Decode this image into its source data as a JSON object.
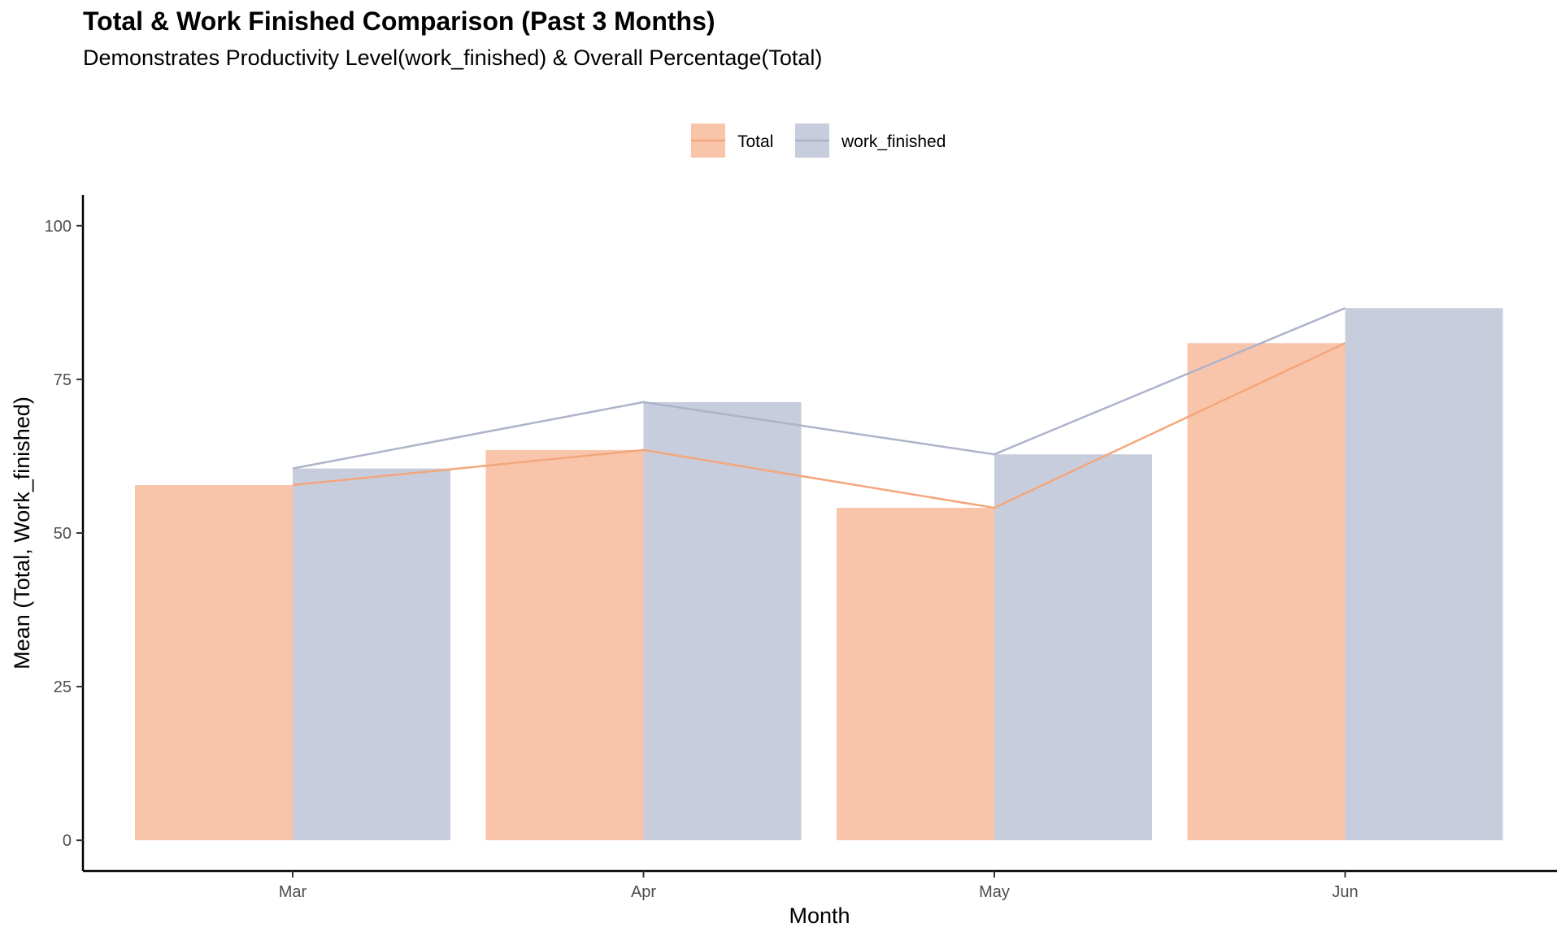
{
  "chart_data": {
    "type": "bar",
    "title": "Total & Work Finished Comparison (Past 3 Months)",
    "subtitle": "Demonstrates Productivity Level(work_finished) & Overall Percentage(Total)",
    "xlabel": "Month",
    "ylabel": "Mean (Total, Work_finished)",
    "categories": [
      "Mar",
      "Apr",
      "May",
      "Jun"
    ],
    "ylim": [
      -5,
      105
    ],
    "yticks": [
      0,
      25,
      50,
      75,
      100
    ],
    "ytick_labels": [
      "0",
      "25",
      "50",
      "75",
      "100"
    ],
    "grid": false,
    "legend_position": "top",
    "series": [
      {
        "name": "Total",
        "values": [
          57.8,
          63.5,
          54.1,
          80.9
        ],
        "bar_color": "#F8C5AA",
        "line_color": "#F4A67C"
      },
      {
        "name": "work_finished",
        "values": [
          60.5,
          71.3,
          62.8,
          86.6
        ],
        "bar_color": "#C7CDDC",
        "line_color": "#ADB3C9"
      }
    ]
  }
}
